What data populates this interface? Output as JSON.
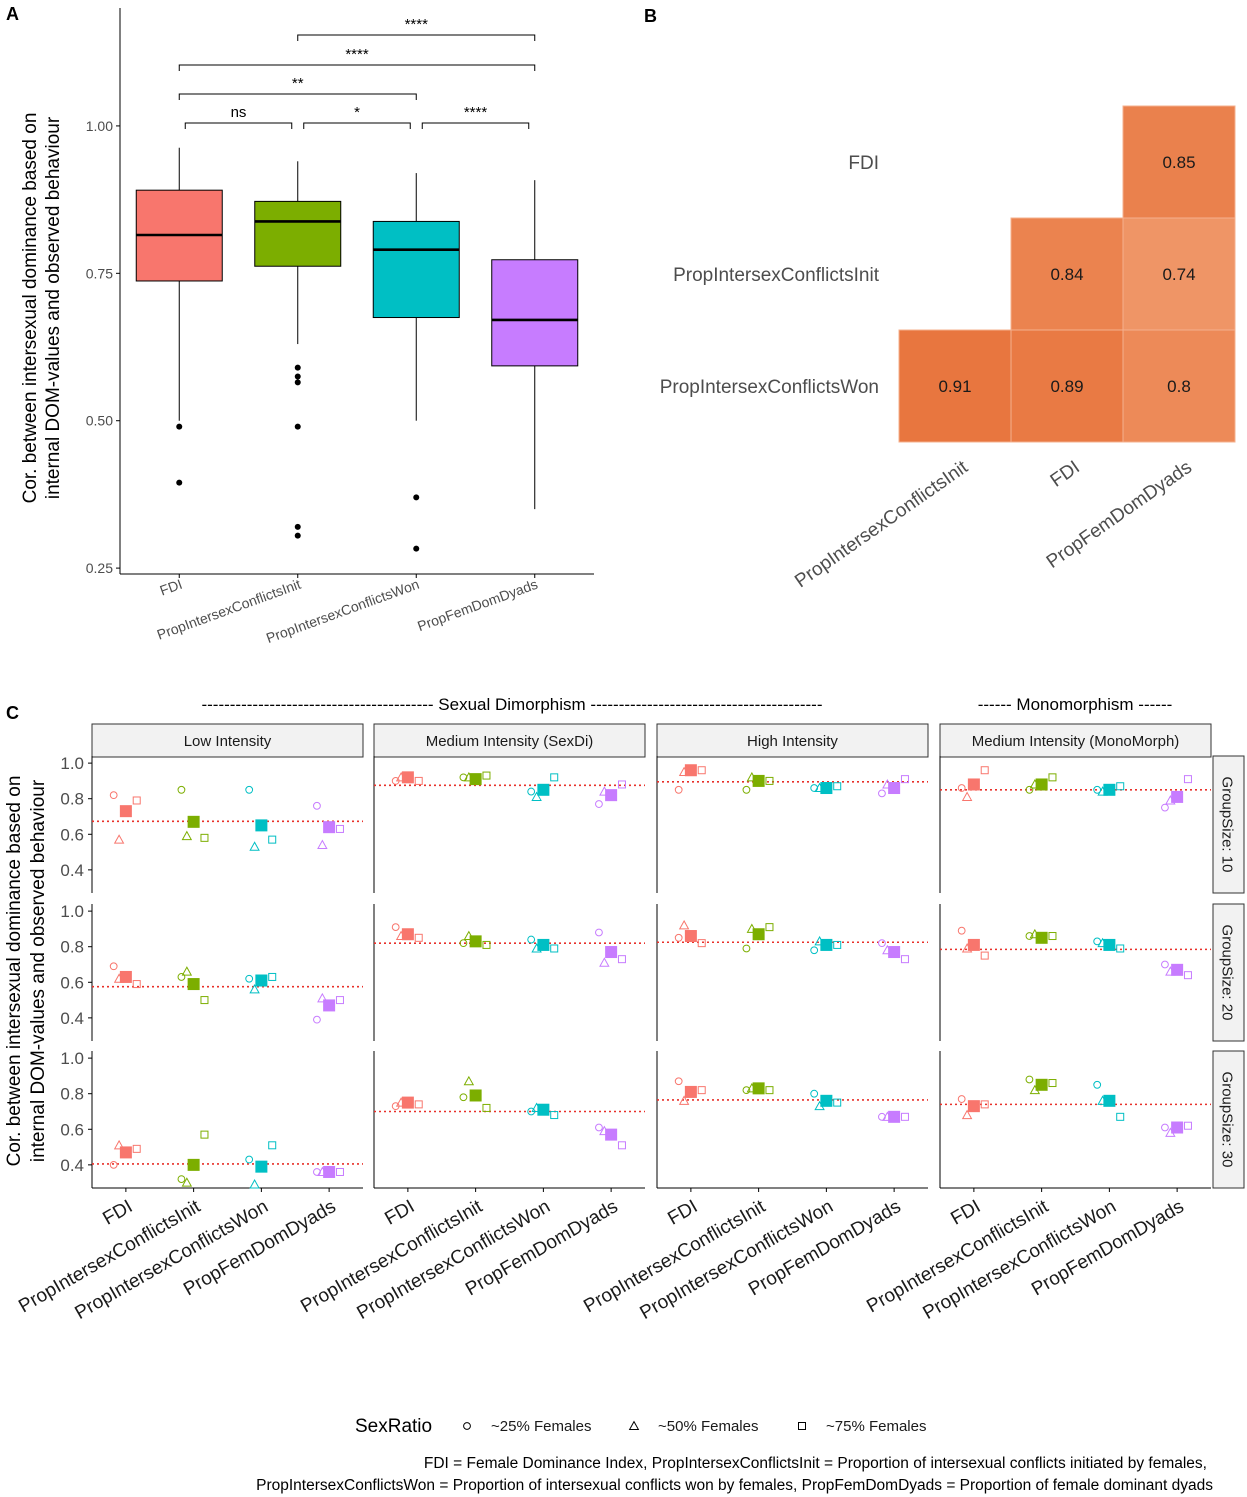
{
  "panels": {
    "a": "A",
    "b": "B",
    "c": "C"
  },
  "footnote": {
    "line1": "FDI = Female Dominance Index, PropIntersexConflictsInit = Proportion of intersexual conflicts initiated by females,",
    "line2": "PropIntersexConflictsWon = Proportion of intersexual conflicts won by females, PropFemDomDyads = Proportion of female dominant dyads"
  },
  "colors": {
    "FDI": "#F8766D",
    "PropIntersexConflictsInit": "#7CAE00",
    "PropIntersexConflictsWon": "#00BFC4",
    "PropFemDomDyads": "#C77CFF",
    "heat_low": "#EF9566",
    "heat_high": "#E8763F",
    "refline": "#E8302A"
  },
  "chart_data": [
    {
      "id": "A",
      "type": "box",
      "ylabel_line1": "Cor. between intersexual dominance based on",
      "ylabel_line2": "internal DOM-values and observed behaviour",
      "ylim": [
        0.24,
        1.2
      ],
      "yticks": [
        0.25,
        0.5,
        0.75,
        1.0
      ],
      "ytick_labels": [
        "0.25",
        "0.50",
        "0.75",
        "1.00"
      ],
      "categories": [
        "FDI",
        "PropIntersexConflictsInit",
        "PropIntersexConflictsWon",
        "PropFemDomDyads"
      ],
      "boxes": [
        {
          "category": "FDI",
          "lower_whisker": 0.5,
          "q1": 0.737,
          "median": 0.815,
          "q3": 0.891,
          "upper_whisker": 0.963,
          "outliers": [
            0.49,
            0.395
          ]
        },
        {
          "category": "PropIntersexConflictsInit",
          "lower_whisker": 0.63,
          "q1": 0.762,
          "median": 0.838,
          "q3": 0.872,
          "upper_whisker": 0.94,
          "outliers": [
            0.59,
            0.575,
            0.565,
            0.49,
            0.32,
            0.305
          ]
        },
        {
          "category": "PropIntersexConflictsWon",
          "lower_whisker": 0.5,
          "q1": 0.675,
          "median": 0.79,
          "q3": 0.838,
          "upper_whisker": 0.92,
          "outliers": [
            0.37,
            0.283
          ]
        },
        {
          "category": "PropFemDomDyads",
          "lower_whisker": 0.35,
          "q1": 0.593,
          "median": 0.671,
          "q3": 0.773,
          "upper_whisker": 0.908,
          "outliers": []
        }
      ],
      "significance": [
        {
          "from": 0,
          "to": 1,
          "label": "ns",
          "level": 0
        },
        {
          "from": 1,
          "to": 2,
          "label": "*",
          "level": 0
        },
        {
          "from": 2,
          "to": 3,
          "label": "****",
          "level": 0
        },
        {
          "from": 0,
          "to": 2,
          "label": "**",
          "level": 1
        },
        {
          "from": 0,
          "to": 3,
          "label": "****",
          "level": 2
        },
        {
          "from": 1,
          "to": 3,
          "label": "****",
          "level": 3
        }
      ]
    },
    {
      "id": "B",
      "type": "heatmap",
      "rows": [
        "FDI",
        "PropIntersexConflictsInit",
        "PropIntersexConflictsWon"
      ],
      "cols": [
        "PropIntersexConflictsInit",
        "FDI",
        "PropFemDomDyads"
      ],
      "cells": [
        {
          "row": 0,
          "col": 2,
          "value": 0.85,
          "label": "0.85"
        },
        {
          "row": 1,
          "col": 1,
          "value": 0.84,
          "label": "0.84"
        },
        {
          "row": 1,
          "col": 2,
          "value": 0.74,
          "label": "0.74"
        },
        {
          "row": 2,
          "col": 0,
          "value": 0.91,
          "label": "0.91"
        },
        {
          "row": 2,
          "col": 1,
          "value": 0.89,
          "label": "0.89"
        },
        {
          "row": 2,
          "col": 2,
          "value": 0.8,
          "label": "0.8"
        }
      ]
    },
    {
      "id": "C",
      "type": "scatter",
      "ylabel_line1": "Cor. between intersexual dominance based on",
      "ylabel_line2": "internal DOM-values and observed behaviour",
      "ylim": [
        0.27,
        1.04
      ],
      "yticks": [
        0.4,
        0.6,
        0.8,
        1.0
      ],
      "ytick_labels": [
        "0.4",
        "0.6",
        "0.8",
        "1.0"
      ],
      "group_headers": {
        "dimorphism": "----------------------------------------- Sexual Dimorphism -----------------------------------------",
        "monomorphism": "------ Monomorphism ------"
      },
      "facet_cols": [
        "Low Intensity",
        "Medium Intensity (SexDi)",
        "High Intensity",
        "Medium Intensity (MonoMorph)"
      ],
      "facet_rows": [
        "GroupSize: 10",
        "GroupSize: 20",
        "GroupSize: 30"
      ],
      "categories": [
        "FDI",
        "PropIntersexConflictsInit",
        "PropIntersexConflictsWon",
        "PropFemDomDyads"
      ],
      "legend": {
        "title": "SexRatio",
        "items": [
          "~25% Females",
          "~50% Females",
          "~75% Females"
        ]
      },
      "shape_offsets": [
        -0.18,
        -0.1,
        0.16
      ],
      "cells": [
        [
          {
            "ref": 0.673,
            "means": [
              0.73,
              0.67,
              0.65,
              0.64
            ],
            "points": [
              [
                0.82,
                0.57,
                0.79
              ],
              [
                0.85,
                0.59,
                0.58
              ],
              [
                0.85,
                0.53,
                0.57
              ],
              [
                0.76,
                0.54,
                0.63
              ]
            ]
          },
          {
            "ref": 0.875,
            "means": [
              0.92,
              0.91,
              0.85,
              0.82
            ],
            "points": [
              [
                0.9,
                0.92,
                0.9
              ],
              [
                0.92,
                0.92,
                0.93
              ],
              [
                0.84,
                0.81,
                0.92
              ],
              [
                0.77,
                0.84,
                0.88
              ]
            ]
          },
          {
            "ref": 0.895,
            "means": [
              0.96,
              0.9,
              0.86,
              0.86
            ],
            "points": [
              [
                0.85,
                0.95,
                0.96
              ],
              [
                0.85,
                0.92,
                0.9
              ],
              [
                0.86,
                0.86,
                0.87
              ],
              [
                0.83,
                0.88,
                0.91
              ]
            ]
          },
          {
            "ref": 0.85,
            "means": [
              0.88,
              0.88,
              0.85,
              0.81
            ],
            "points": [
              [
                0.86,
                0.81,
                0.96
              ],
              [
                0.85,
                0.88,
                0.92
              ],
              [
                0.85,
                0.84,
                0.87
              ],
              [
                0.75,
                0.79,
                0.91
              ]
            ]
          }
        ],
        [
          {
            "ref": 0.575,
            "means": [
              0.63,
              0.59,
              0.61,
              0.47
            ],
            "points": [
              [
                0.69,
                0.62,
                0.59
              ],
              [
                0.63,
                0.66,
                0.5
              ],
              [
                0.62,
                0.56,
                0.63
              ],
              [
                0.39,
                0.51,
                0.5
              ]
            ]
          },
          {
            "ref": 0.82,
            "means": [
              0.87,
              0.83,
              0.81,
              0.77
            ],
            "points": [
              [
                0.91,
                0.86,
                0.85
              ],
              [
                0.82,
                0.86,
                0.81
              ],
              [
                0.84,
                0.79,
                0.79
              ],
              [
                0.88,
                0.71,
                0.73
              ]
            ]
          },
          {
            "ref": 0.825,
            "means": [
              0.86,
              0.87,
              0.81,
              0.77
            ],
            "points": [
              [
                0.85,
                0.92,
                0.82
              ],
              [
                0.79,
                0.9,
                0.91
              ],
              [
                0.78,
                0.83,
                0.81
              ],
              [
                0.82,
                0.78,
                0.73
              ]
            ]
          },
          {
            "ref": 0.785,
            "means": [
              0.81,
              0.85,
              0.81,
              0.67
            ],
            "points": [
              [
                0.89,
                0.79,
                0.75
              ],
              [
                0.86,
                0.87,
                0.86
              ],
              [
                0.83,
                0.82,
                0.79
              ],
              [
                0.7,
                0.66,
                0.64
              ]
            ]
          }
        ],
        [
          {
            "ref": 0.405,
            "means": [
              0.47,
              0.4,
              0.39,
              0.36
            ],
            "points": [
              [
                0.4,
                0.51,
                0.49
              ],
              [
                0.32,
                0.3,
                0.57
              ],
              [
                0.43,
                0.29,
                0.51
              ],
              [
                0.36,
                0.36,
                0.36
              ]
            ]
          },
          {
            "ref": 0.7,
            "means": [
              0.75,
              0.79,
              0.71,
              0.57
            ],
            "points": [
              [
                0.73,
                0.75,
                0.74
              ],
              [
                0.78,
                0.87,
                0.72
              ],
              [
                0.7,
                0.72,
                0.68
              ],
              [
                0.61,
                0.59,
                0.51
              ]
            ]
          },
          {
            "ref": 0.765,
            "means": [
              0.81,
              0.83,
              0.76,
              0.67
            ],
            "points": [
              [
                0.87,
                0.76,
                0.82
              ],
              [
                0.82,
                0.83,
                0.82
              ],
              [
                0.8,
                0.73,
                0.75
              ],
              [
                0.67,
                0.67,
                0.67
              ]
            ]
          },
          {
            "ref": 0.74,
            "means": [
              0.73,
              0.85,
              0.76,
              0.61
            ],
            "points": [
              [
                0.77,
                0.68,
                0.74
              ],
              [
                0.88,
                0.82,
                0.86
              ],
              [
                0.85,
                0.76,
                0.67
              ],
              [
                0.61,
                0.58,
                0.62
              ]
            ]
          }
        ]
      ]
    }
  ]
}
